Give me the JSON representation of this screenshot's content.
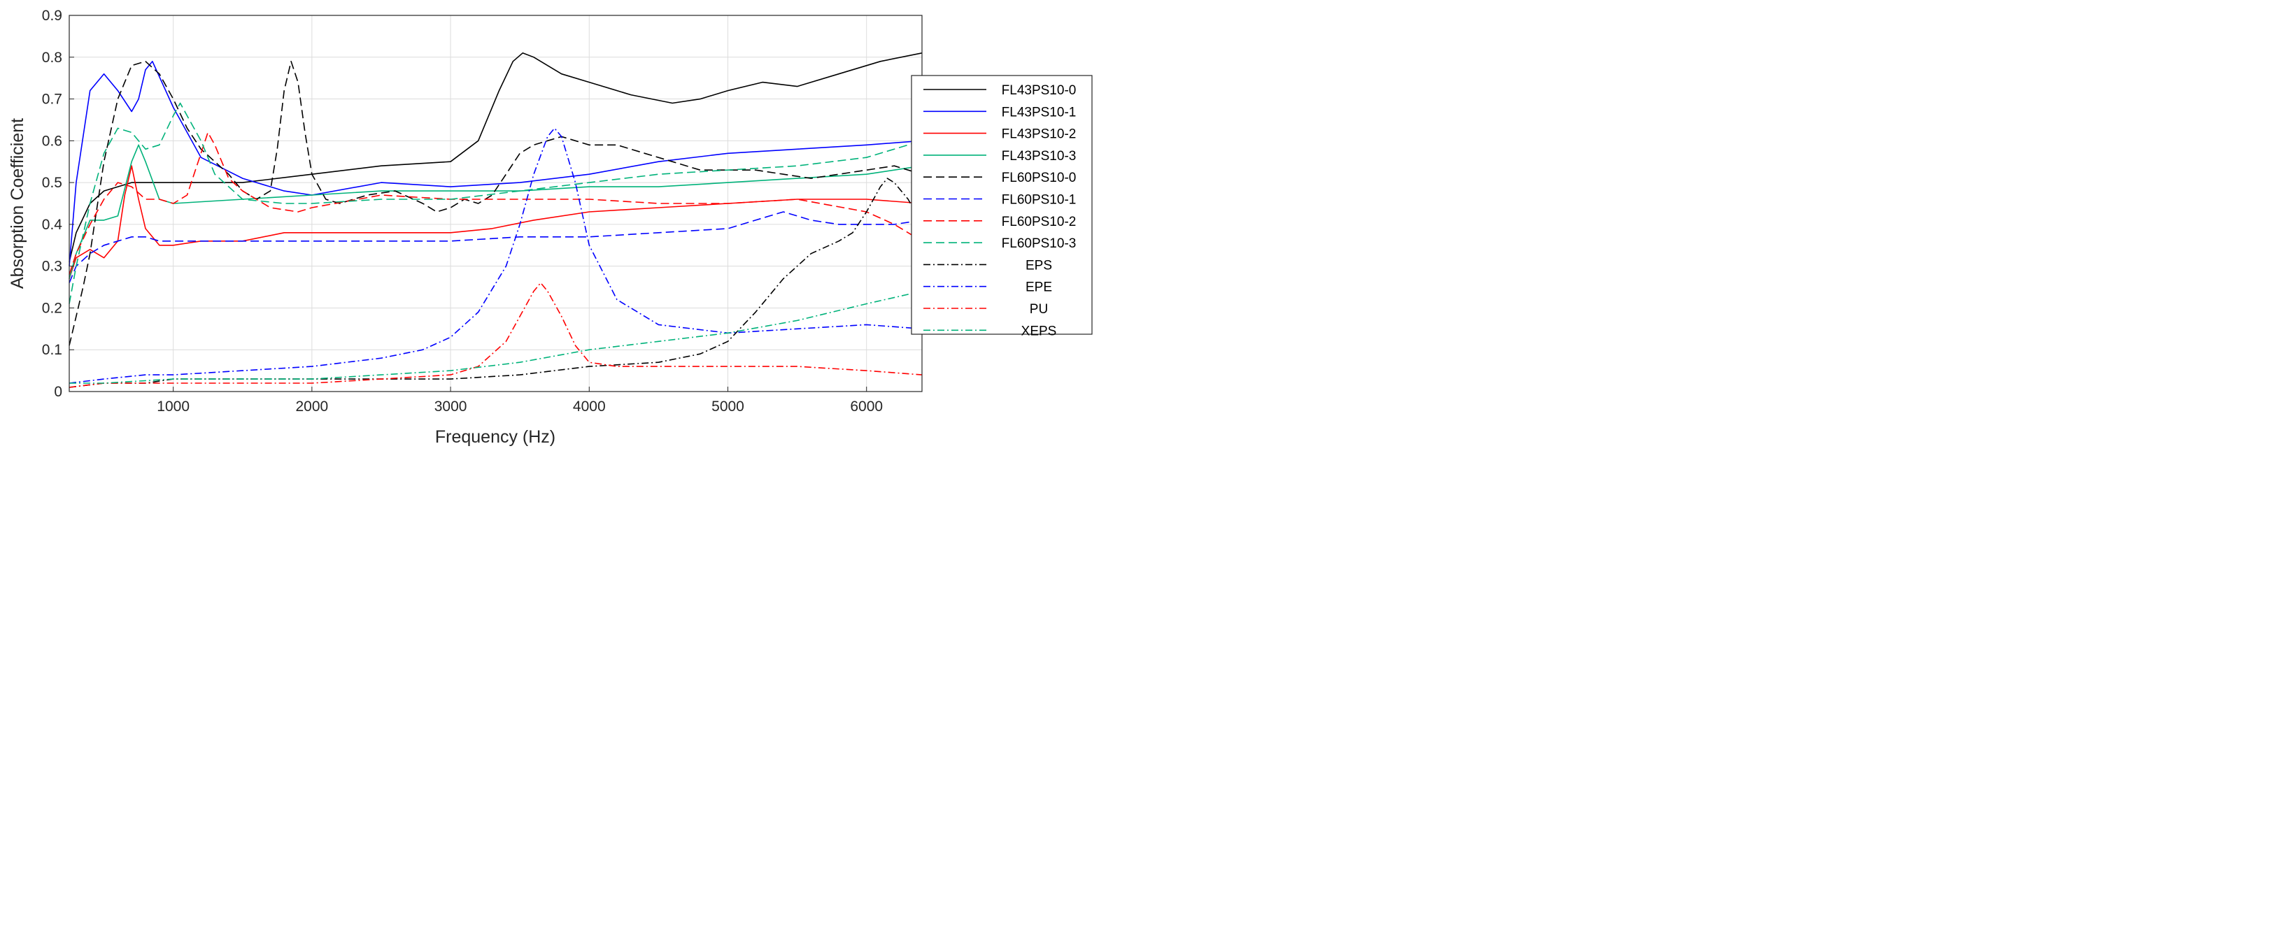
{
  "chart_data": {
    "type": "line",
    "title": "",
    "xlabel": "Frequency (Hz)",
    "ylabel": "Absorption Coefficient",
    "xlim": [
      250,
      6400
    ],
    "ylim": [
      0,
      0.9
    ],
    "xticks": [
      1000,
      2000,
      3000,
      4000,
      5000,
      6000
    ],
    "yticks": [
      0,
      0.1,
      0.2,
      0.3,
      0.4,
      0.5,
      0.6,
      0.7,
      0.8,
      0.9
    ],
    "grid": true,
    "legend_position": "right",
    "series": [
      {
        "name": "FL43PS10-0",
        "color": "#000000",
        "style": "solid",
        "x": [
          250,
          300,
          400,
          500,
          600,
          700,
          800,
          1000,
          1500,
          2000,
          2500,
          3000,
          3200,
          3350,
          3450,
          3520,
          3600,
          3800,
          4000,
          4300,
          4600,
          4800,
          5000,
          5250,
          5500,
          5800,
          6100,
          6400
        ],
        "y": [
          0.31,
          0.38,
          0.45,
          0.48,
          0.49,
          0.5,
          0.5,
          0.5,
          0.5,
          0.52,
          0.54,
          0.55,
          0.6,
          0.72,
          0.79,
          0.81,
          0.8,
          0.76,
          0.74,
          0.71,
          0.69,
          0.7,
          0.72,
          0.74,
          0.73,
          0.76,
          0.79,
          0.81
        ]
      },
      {
        "name": "FL43PS10-1",
        "color": "#0000ff",
        "style": "solid",
        "x": [
          250,
          300,
          400,
          500,
          600,
          700,
          750,
          800,
          850,
          1000,
          1200,
          1500,
          1800,
          2000,
          2500,
          3000,
          3500,
          4000,
          4500,
          5000,
          5500,
          6000,
          6400
        ],
        "y": [
          0.3,
          0.5,
          0.72,
          0.76,
          0.72,
          0.67,
          0.7,
          0.77,
          0.79,
          0.68,
          0.56,
          0.51,
          0.48,
          0.47,
          0.5,
          0.49,
          0.5,
          0.52,
          0.55,
          0.57,
          0.58,
          0.59,
          0.6
        ]
      },
      {
        "name": "FL43PS10-2",
        "color": "#ff0000",
        "style": "solid",
        "x": [
          250,
          300,
          400,
          500,
          600,
          650,
          700,
          750,
          800,
          900,
          1000,
          1200,
          1500,
          1800,
          2000,
          2500,
          3000,
          3300,
          3600,
          4000,
          4500,
          5000,
          5500,
          6000,
          6400
        ],
        "y": [
          0.27,
          0.32,
          0.34,
          0.32,
          0.36,
          0.47,
          0.54,
          0.46,
          0.39,
          0.35,
          0.35,
          0.36,
          0.36,
          0.38,
          0.38,
          0.38,
          0.38,
          0.39,
          0.41,
          0.43,
          0.44,
          0.45,
          0.46,
          0.46,
          0.45
        ]
      },
      {
        "name": "FL43PS10-3",
        "color": "#00b27a",
        "style": "solid",
        "x": [
          250,
          300,
          400,
          500,
          600,
          700,
          750,
          800,
          900,
          1000,
          1500,
          2000,
          2500,
          3000,
          3500,
          4000,
          4500,
          5000,
          5500,
          6000,
          6400
        ],
        "y": [
          0.27,
          0.33,
          0.41,
          0.41,
          0.42,
          0.55,
          0.59,
          0.55,
          0.46,
          0.45,
          0.46,
          0.47,
          0.48,
          0.48,
          0.48,
          0.49,
          0.49,
          0.5,
          0.51,
          0.52,
          0.54
        ]
      },
      {
        "name": "FL60PS10-0",
        "color": "#000000",
        "style": "dash",
        "x": [
          250,
          300,
          350,
          400,
          500,
          600,
          700,
          800,
          900,
          1000,
          1100,
          1200,
          1300,
          1400,
          1500,
          1600,
          1700,
          1750,
          1800,
          1850,
          1900,
          1950,
          2000,
          2100,
          2200,
          2400,
          2600,
          2800,
          2900,
          3000,
          3100,
          3200,
          3300,
          3400,
          3500,
          3600,
          3700,
          3800,
          3900,
          4000,
          4200,
          4400,
          4600,
          4800,
          5000,
          5200,
          5400,
          5600,
          5800,
          6000,
          6200,
          6400
        ],
        "y": [
          0.11,
          0.18,
          0.25,
          0.33,
          0.55,
          0.7,
          0.78,
          0.79,
          0.76,
          0.7,
          0.63,
          0.58,
          0.55,
          0.52,
          0.48,
          0.46,
          0.48,
          0.58,
          0.72,
          0.79,
          0.74,
          0.62,
          0.52,
          0.46,
          0.45,
          0.47,
          0.48,
          0.45,
          0.43,
          0.44,
          0.46,
          0.45,
          0.47,
          0.52,
          0.57,
          0.59,
          0.6,
          0.61,
          0.6,
          0.59,
          0.59,
          0.57,
          0.55,
          0.53,
          0.53,
          0.53,
          0.52,
          0.51,
          0.52,
          0.53,
          0.54,
          0.52
        ]
      },
      {
        "name": "FL60PS10-1",
        "color": "#0000ff",
        "style": "dash",
        "x": [
          250,
          300,
          400,
          500,
          600,
          700,
          750,
          800,
          900,
          1000,
          1500,
          2000,
          2500,
          3000,
          3500,
          4000,
          4500,
          5000,
          5200,
          5300,
          5400,
          5500,
          5600,
          5800,
          6000,
          6200,
          6400
        ],
        "y": [
          0.26,
          0.3,
          0.33,
          0.35,
          0.36,
          0.37,
          0.37,
          0.37,
          0.36,
          0.36,
          0.36,
          0.36,
          0.36,
          0.36,
          0.37,
          0.37,
          0.38,
          0.39,
          0.41,
          0.42,
          0.43,
          0.42,
          0.41,
          0.4,
          0.4,
          0.4,
          0.41
        ]
      },
      {
        "name": "FL60PS10-2",
        "color": "#ff0000",
        "style": "dash",
        "x": [
          250,
          300,
          400,
          500,
          600,
          700,
          800,
          900,
          1000,
          1100,
          1200,
          1250,
          1300,
          1400,
          1500,
          1700,
          1900,
          2000,
          2500,
          3000,
          3500,
          4000,
          4500,
          5000,
          5500,
          6000,
          6200,
          6400
        ],
        "y": [
          0.28,
          0.33,
          0.4,
          0.46,
          0.5,
          0.49,
          0.46,
          0.46,
          0.45,
          0.47,
          0.57,
          0.62,
          0.59,
          0.51,
          0.48,
          0.44,
          0.43,
          0.44,
          0.47,
          0.46,
          0.46,
          0.46,
          0.45,
          0.45,
          0.46,
          0.43,
          0.4,
          0.36
        ]
      },
      {
        "name": "FL60PS10-3",
        "color": "#00b27a",
        "style": "dash",
        "x": [
          250,
          300,
          400,
          500,
          600,
          700,
          800,
          900,
          1000,
          1050,
          1100,
          1200,
          1300,
          1500,
          1800,
          2000,
          2500,
          3000,
          3500,
          4000,
          4500,
          5000,
          5500,
          6000,
          6400
        ],
        "y": [
          0.21,
          0.3,
          0.45,
          0.57,
          0.63,
          0.62,
          0.58,
          0.59,
          0.66,
          0.69,
          0.66,
          0.6,
          0.52,
          0.46,
          0.45,
          0.45,
          0.46,
          0.46,
          0.48,
          0.5,
          0.52,
          0.53,
          0.54,
          0.56,
          0.6
        ]
      },
      {
        "name": "EPS",
        "color": "#000000",
        "style": "dashdot",
        "x": [
          250,
          500,
          800,
          1000,
          1500,
          2000,
          2500,
          3000,
          3500,
          4000,
          4500,
          4800,
          5000,
          5200,
          5400,
          5600,
          5800,
          5900,
          6000,
          6100,
          6150,
          6200,
          6300,
          6400
        ],
        "y": [
          0.01,
          0.02,
          0.02,
          0.03,
          0.03,
          0.03,
          0.03,
          0.03,
          0.04,
          0.06,
          0.07,
          0.09,
          0.12,
          0.19,
          0.27,
          0.33,
          0.36,
          0.38,
          0.43,
          0.49,
          0.51,
          0.5,
          0.46,
          0.4
        ]
      },
      {
        "name": "EPE",
        "color": "#0000ff",
        "style": "dashdot",
        "x": [
          250,
          500,
          800,
          1000,
          1500,
          2000,
          2500,
          2800,
          3000,
          3200,
          3400,
          3500,
          3600,
          3700,
          3750,
          3800,
          3900,
          4000,
          4200,
          4500,
          5000,
          5500,
          6000,
          6400
        ],
        "y": [
          0.02,
          0.03,
          0.04,
          0.04,
          0.05,
          0.06,
          0.08,
          0.1,
          0.13,
          0.19,
          0.3,
          0.4,
          0.52,
          0.61,
          0.63,
          0.61,
          0.5,
          0.35,
          0.22,
          0.16,
          0.14,
          0.15,
          0.16,
          0.15
        ]
      },
      {
        "name": "PU",
        "color": "#ff0000",
        "style": "dashdot",
        "x": [
          250,
          500,
          800,
          1000,
          1500,
          2000,
          2500,
          3000,
          3200,
          3400,
          3500,
          3600,
          3650,
          3700,
          3800,
          3900,
          4000,
          4200,
          4500,
          5000,
          5500,
          6000,
          6400
        ],
        "y": [
          0.01,
          0.02,
          0.02,
          0.02,
          0.02,
          0.02,
          0.03,
          0.04,
          0.06,
          0.12,
          0.18,
          0.24,
          0.26,
          0.24,
          0.18,
          0.11,
          0.07,
          0.06,
          0.06,
          0.06,
          0.06,
          0.05,
          0.04
        ]
      },
      {
        "name": "XEPS",
        "color": "#00b27a",
        "style": "dashdot",
        "x": [
          250,
          500,
          1000,
          1500,
          2000,
          2500,
          3000,
          3500,
          4000,
          4500,
          5000,
          5500,
          6000,
          6400
        ],
        "y": [
          0.02,
          0.02,
          0.03,
          0.03,
          0.03,
          0.04,
          0.05,
          0.07,
          0.1,
          0.12,
          0.14,
          0.17,
          0.21,
          0.24
        ]
      }
    ]
  }
}
